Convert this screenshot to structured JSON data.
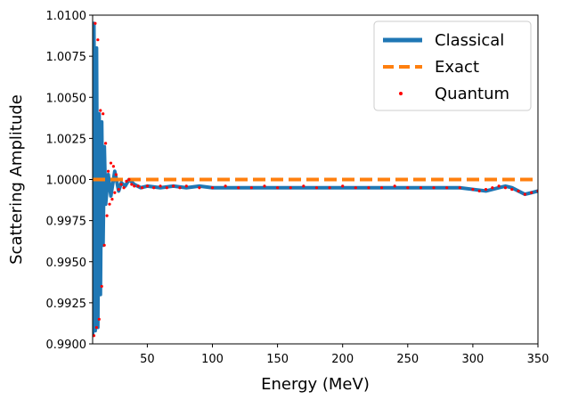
{
  "chart_data": {
    "type": "line",
    "title": "",
    "xlabel": "Energy (MeV)",
    "ylabel": "Scattering Amplitude",
    "xlim": [
      8,
      350
    ],
    "ylim": [
      0.99,
      1.01
    ],
    "xticks": [
      50,
      100,
      150,
      200,
      250,
      300,
      350
    ],
    "xtick_labels": [
      "50",
      "100",
      "150",
      "200",
      "250",
      "300",
      "350"
    ],
    "yticks": [
      0.99,
      0.9925,
      0.995,
      0.9975,
      1.0,
      1.0025,
      1.005,
      1.0075,
      1.01
    ],
    "ytick_labels": [
      "0.9900",
      "0.9925",
      "0.9950",
      "0.9975",
      "1.0000",
      "1.0025",
      "1.0050",
      "1.0075",
      "1.0100"
    ],
    "grid": false,
    "legend_position": "top-right",
    "series": [
      {
        "name": "Classical",
        "style": "solid",
        "color": "#1f77b4",
        "x": [
          8,
          9,
          10,
          11,
          12,
          13,
          14,
          15,
          16,
          17,
          18,
          20,
          22,
          25,
          28,
          30,
          33,
          36,
          40,
          45,
          50,
          60,
          70,
          80,
          90,
          100,
          120,
          140,
          160,
          180,
          200,
          220,
          240,
          260,
          280,
          290,
          300,
          310,
          320,
          325,
          330,
          335,
          340,
          345,
          350
        ],
        "y": [
          0.9905,
          1.0095,
          0.9908,
          1.008,
          0.991,
          1.004,
          0.993,
          1.0035,
          0.996,
          1.002,
          0.9985,
          1.0003,
          0.999,
          1.0005,
          0.9993,
          0.9998,
          0.9996,
          1.0,
          0.9997,
          0.9995,
          0.9996,
          0.9995,
          0.9996,
          0.9995,
          0.9996,
          0.9995,
          0.9995,
          0.9995,
          0.9995,
          0.9995,
          0.9995,
          0.9995,
          0.9995,
          0.9995,
          0.9995,
          0.9995,
          0.9994,
          0.9993,
          0.9995,
          0.9996,
          0.9995,
          0.9993,
          0.9991,
          0.9992,
          0.9993
        ]
      },
      {
        "name": "Exact",
        "style": "dashed",
        "color": "#ff7f0e",
        "x": [
          8,
          350
        ],
        "y": [
          1.0,
          1.0
        ]
      },
      {
        "name": "Quantum",
        "style": "dots",
        "color": "#ff0000",
        "x": [
          9,
          10,
          11,
          12,
          13,
          14,
          15,
          16,
          17,
          18,
          19,
          20,
          21,
          22,
          23,
          24,
          25,
          26,
          28,
          30,
          32,
          34,
          36,
          38,
          40,
          43,
          46,
          50,
          55,
          60,
          65,
          70,
          75,
          80,
          90,
          100,
          110,
          120,
          130,
          140,
          150,
          160,
          170,
          180,
          190,
          200,
          210,
          220,
          230,
          240,
          250,
          260,
          270,
          280,
          290,
          300,
          305,
          310,
          315,
          320,
          325,
          330,
          335,
          340,
          345,
          350
        ],
        "y": [
          0.9905,
          1.0095,
          0.991,
          1.0085,
          0.9915,
          1.0042,
          0.9935,
          1.004,
          0.996,
          1.0022,
          0.9978,
          1.0005,
          0.9985,
          1.001,
          0.9988,
          1.0008,
          0.9992,
          1.0003,
          0.9994,
          0.9997,
          0.9995,
          0.9999,
          1.0,
          0.9997,
          0.9996,
          0.9996,
          0.9995,
          0.9996,
          0.9995,
          0.9996,
          0.9995,
          0.9996,
          0.9995,
          0.9996,
          0.9995,
          0.9995,
          0.9996,
          0.9995,
          0.9995,
          0.9996,
          0.9995,
          0.9995,
          0.9996,
          0.9995,
          0.9995,
          0.9996,
          0.9995,
          0.9995,
          0.9995,
          0.9996,
          0.9995,
          0.9995,
          0.9995,
          0.9995,
          0.9995,
          0.9994,
          0.9993,
          0.9994,
          0.9995,
          0.9996,
          0.9995,
          0.9994,
          0.9993,
          0.9991,
          0.9992,
          0.9993
        ]
      }
    ]
  }
}
